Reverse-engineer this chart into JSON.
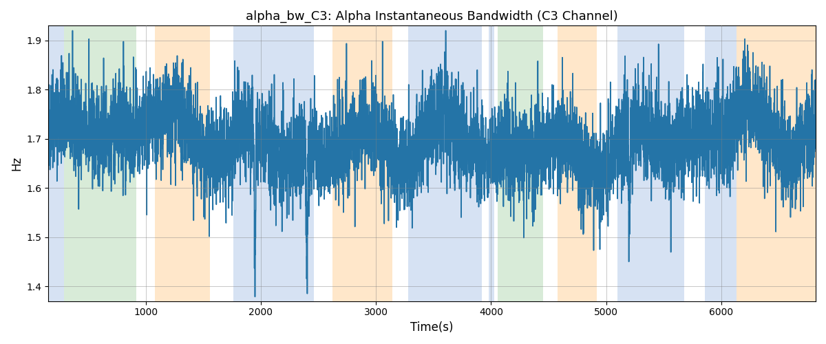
{
  "title": "alpha_bw_C3: Alpha Instantaneous Bandwidth (C3 Channel)",
  "xlabel": "Time(s)",
  "ylabel": "Hz",
  "xlim": [
    155,
    6820
  ],
  "ylim": [
    1.37,
    1.93
  ],
  "line_color": "#2474a7",
  "line_width": 1.2,
  "grid": true,
  "seed": 42,
  "num_points": 6650,
  "x_start": 155,
  "x_end": 6820,
  "signal_mean": 1.695,
  "colored_bands": [
    {
      "xmin": 155,
      "xmax": 290,
      "color": "#aec6e8",
      "alpha": 0.5
    },
    {
      "xmin": 290,
      "xmax": 920,
      "color": "#b2d8b2",
      "alpha": 0.5
    },
    {
      "xmin": 1080,
      "xmax": 1560,
      "color": "#ffd8a8",
      "alpha": 0.6
    },
    {
      "xmin": 1760,
      "xmax": 2460,
      "color": "#aec6e8",
      "alpha": 0.5
    },
    {
      "xmin": 2620,
      "xmax": 3140,
      "color": "#ffd8a8",
      "alpha": 0.6
    },
    {
      "xmin": 3280,
      "xmax": 3920,
      "color": "#aec6e8",
      "alpha": 0.5
    },
    {
      "xmin": 3980,
      "xmax": 4030,
      "color": "#aec6e8",
      "alpha": 0.5
    },
    {
      "xmin": 4060,
      "xmax": 4450,
      "color": "#b2d8b2",
      "alpha": 0.5
    },
    {
      "xmin": 4580,
      "xmax": 4920,
      "color": "#ffd8a8",
      "alpha": 0.6
    },
    {
      "xmin": 5100,
      "xmax": 5680,
      "color": "#aec6e8",
      "alpha": 0.5
    },
    {
      "xmin": 5860,
      "xmax": 6130,
      "color": "#aec6e8",
      "alpha": 0.5
    },
    {
      "xmin": 6130,
      "xmax": 6820,
      "color": "#ffd8a8",
      "alpha": 0.6
    }
  ],
  "figsize": [
    12.0,
    5.0
  ],
  "dpi": 100
}
